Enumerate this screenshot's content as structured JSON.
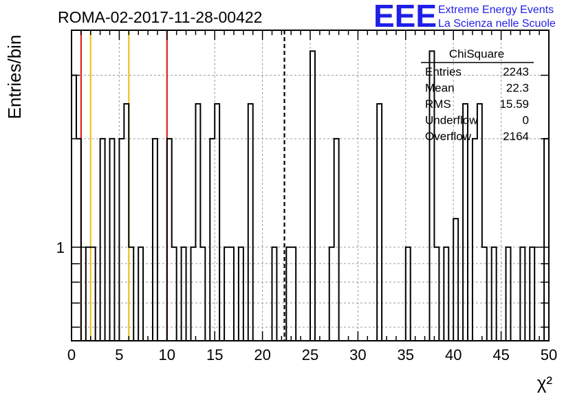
{
  "title": "ROMA-02-2017-11-28-00422",
  "logo": {
    "letters": "EEE",
    "line1": "Extreme Energy Events",
    "line2": "La Scienza nelle Scuole",
    "color": "#1f1fe8"
  },
  "stats": {
    "name": "ChiSquare",
    "rows": [
      {
        "label": "Entries",
        "value": "2243"
      },
      {
        "label": "Mean",
        "value": "22.3"
      },
      {
        "label": "RMS",
        "value": "15.59"
      },
      {
        "label": "Underflow",
        "value": "0"
      },
      {
        "label": "Overflow",
        "value": "2164"
      }
    ]
  },
  "chart_data": {
    "type": "histogram",
    "xlabel": "χ²",
    "ylabel": "Entries/bin",
    "xlim": [
      0,
      50
    ],
    "ylim": [
      0.55,
      4.0
    ],
    "yscale": "log",
    "x_ticks": [
      "0",
      "5",
      "10",
      "15",
      "20",
      "25",
      "30",
      "35",
      "40",
      "45",
      "50"
    ],
    "y_tick_labels": [
      {
        "value": 1,
        "label": "1"
      }
    ],
    "grid": true,
    "bin_width": 0.5,
    "bins": [
      {
        "x": 0.0,
        "count": 3
      },
      {
        "x": 0.5,
        "count": 2
      },
      {
        "x": 1.5,
        "count": 1
      },
      {
        "x": 2.0,
        "count": 1
      },
      {
        "x": 3.0,
        "count": 2
      },
      {
        "x": 4.0,
        "count": 2
      },
      {
        "x": 5.0,
        "count": 2
      },
      {
        "x": 5.5,
        "count": 2.5
      },
      {
        "x": 6.0,
        "count": 1
      },
      {
        "x": 7.0,
        "count": 1
      },
      {
        "x": 8.5,
        "count": 2
      },
      {
        "x": 10.0,
        "count": 2
      },
      {
        "x": 10.5,
        "count": 1
      },
      {
        "x": 11.5,
        "count": 1
      },
      {
        "x": 12.5,
        "count": 1
      },
      {
        "x": 13.0,
        "count": 2.5
      },
      {
        "x": 13.5,
        "count": 1
      },
      {
        "x": 14.5,
        "count": 2
      },
      {
        "x": 15.0,
        "count": 2.5
      },
      {
        "x": 16.0,
        "count": 1
      },
      {
        "x": 16.5,
        "count": 1
      },
      {
        "x": 17.5,
        "count": 1
      },
      {
        "x": 18.5,
        "count": 2.5
      },
      {
        "x": 21.0,
        "count": 1
      },
      {
        "x": 22.5,
        "count": 1
      },
      {
        "x": 23.0,
        "count": 1
      },
      {
        "x": 25.0,
        "count": 3.5
      },
      {
        "x": 27.0,
        "count": 1
      },
      {
        "x": 27.5,
        "count": 2
      },
      {
        "x": 32.0,
        "count": 2.5
      },
      {
        "x": 35.0,
        "count": 1
      },
      {
        "x": 37.5,
        "count": 3.5
      },
      {
        "x": 38.0,
        "count": 1
      },
      {
        "x": 39.0,
        "count": 1
      },
      {
        "x": 40.0,
        "count": 1.2
      },
      {
        "x": 41.0,
        "count": 2.5
      },
      {
        "x": 42.0,
        "count": 2
      },
      {
        "x": 42.5,
        "count": 2.5
      },
      {
        "x": 43.0,
        "count": 1
      },
      {
        "x": 44.0,
        "count": 1
      },
      {
        "x": 45.5,
        "count": 1
      },
      {
        "x": 47.0,
        "count": 1
      },
      {
        "x": 48.0,
        "count": 1
      },
      {
        "x": 49.5,
        "count": 2
      }
    ],
    "markers": [
      {
        "x": 1,
        "color": "#e02020",
        "style": "solid"
      },
      {
        "x": 2,
        "color": "#f0c020",
        "style": "solid"
      },
      {
        "x": 6,
        "color": "#f0c020",
        "style": "solid"
      },
      {
        "x": 10,
        "color": "#e02020",
        "style": "solid"
      },
      {
        "x": 22.3,
        "color": "#000000",
        "style": "dashed"
      }
    ]
  }
}
